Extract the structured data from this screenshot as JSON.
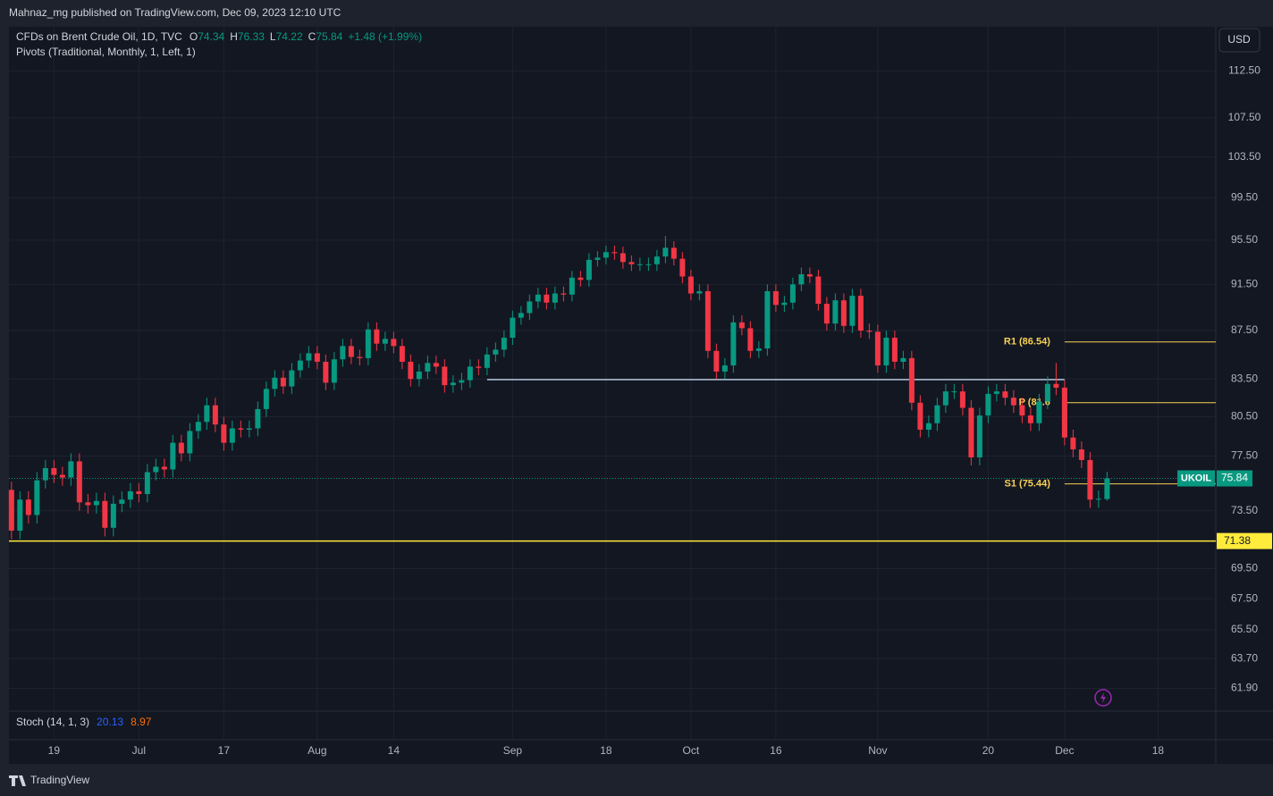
{
  "header": {
    "publisher": "Mahnaz_mg published on TradingView.com, Dec 09, 2023 12:10 UTC"
  },
  "footer": {
    "brand": "TradingView"
  },
  "chart_data": {
    "type": "candlestick",
    "title": "CFDs on Brent Crude Oil, 1D, TVC",
    "subtitle": "Pivots (Traditional, Monthly, 1, Left, 1)",
    "ohlc_labels": [
      "O",
      "H",
      "L",
      "C"
    ],
    "change": "+1.48 (+1.99%)",
    "currency": "USD",
    "log_scale": true,
    "grid": true,
    "up_color": "#089981",
    "down_color": "#f23645",
    "xlim": [
      -0.3,
      141.8
    ],
    "xticks": [
      {
        "value": 5,
        "label": "19"
      },
      {
        "value": 15,
        "label": "Jul"
      },
      {
        "value": 25,
        "label": "17"
      },
      {
        "value": 36,
        "label": "Aug"
      },
      {
        "value": 45,
        "label": "14"
      },
      {
        "value": 59,
        "label": "Sep"
      },
      {
        "value": 70,
        "label": "18"
      },
      {
        "value": 80,
        "label": "Oct"
      },
      {
        "value": 90,
        "label": "16"
      },
      {
        "value": 102,
        "label": "Nov"
      },
      {
        "value": 115,
        "label": "20"
      },
      {
        "value": 124,
        "label": "Dec"
      },
      {
        "value": 135,
        "label": "18"
      }
    ],
    "ylim": [
      60.6,
      117.4
    ],
    "yticks": [
      {
        "value": 112.5,
        "label": "112.50"
      },
      {
        "value": 107.5,
        "label": "107.50"
      },
      {
        "value": 103.5,
        "label": "103.50"
      },
      {
        "value": 99.5,
        "label": "99.50"
      },
      {
        "value": 95.5,
        "label": "95.50"
      },
      {
        "value": 91.5,
        "label": "91.50"
      },
      {
        "value": 87.5,
        "label": "87.50"
      },
      {
        "value": 83.5,
        "label": "83.50"
      },
      {
        "value": 80.5,
        "label": "80.50"
      },
      {
        "value": 77.5,
        "label": "77.50"
      },
      {
        "value": 73.5,
        "label": "73.50"
      },
      {
        "value": 69.5,
        "label": "69.50"
      },
      {
        "value": 67.5,
        "label": "67.50"
      },
      {
        "value": 65.5,
        "label": "65.50"
      },
      {
        "value": 63.7,
        "label": "63.70"
      },
      {
        "value": 61.9,
        "label": "61.90"
      }
    ],
    "series": [
      {
        "name": "UKOIL",
        "open": [
          75.0,
          72.1,
          74.3,
          73.2,
          75.7,
          76.6,
          76.1,
          75.9,
          77.1,
          74.1,
          73.9,
          74.2,
          72.3,
          74.0,
          74.3,
          74.9,
          74.7,
          76.3,
          76.7,
          76.5,
          78.5,
          77.7,
          79.4,
          80.1,
          81.4,
          79.9,
          78.5,
          79.6,
          79.5,
          79.6,
          81.1,
          82.7,
          83.6,
          82.9,
          84.2,
          85.0,
          85.6,
          84.9,
          83.2,
          85.1,
          86.2,
          85.3,
          85.2,
          87.6,
          86.4,
          86.8,
          86.2,
          84.9,
          83.5,
          84.1,
          84.8,
          84.5,
          83.0,
          83.2,
          83.4,
          84.5,
          84.4,
          85.5,
          85.9,
          86.9,
          88.6,
          89.0,
          90.0,
          90.6,
          89.9,
          90.7,
          90.6,
          92.1,
          91.9,
          93.7,
          93.9,
          94.4,
          94.3,
          93.5,
          93.3,
          93.3,
          93.3,
          94.0,
          94.8,
          93.8,
          92.2,
          90.7,
          90.9,
          85.8,
          84.1,
          84.6,
          88.2,
          87.7,
          85.8,
          86.0,
          90.9,
          89.7,
          89.9,
          91.5,
          92.4,
          92.2,
          89.8,
          88.1,
          90.1,
          87.9,
          90.5,
          87.5,
          87.4,
          84.6,
          86.9,
          84.9,
          85.2,
          81.6,
          79.5,
          80.0,
          81.4,
          82.5,
          82.5,
          81.2,
          77.4,
          80.6,
          82.3,
          82.5,
          82.0,
          81.4,
          80.6,
          80.0,
          81.7,
          83.1,
          82.8,
          78.9,
          78.0,
          77.2,
          74.3,
          74.34
        ],
        "high": [
          75.6,
          74.9,
          74.9,
          76.3,
          77.2,
          77.2,
          76.7,
          77.7,
          77.7,
          74.7,
          74.8,
          74.8,
          74.6,
          74.9,
          75.5,
          75.5,
          76.9,
          77.3,
          77.3,
          79.1,
          79.1,
          80.0,
          80.7,
          82.0,
          82.0,
          80.5,
          80.2,
          80.2,
          80.2,
          81.7,
          83.3,
          84.2,
          84.2,
          84.8,
          85.6,
          86.2,
          86.2,
          85.5,
          85.7,
          86.8,
          86.8,
          85.9,
          88.2,
          88.2,
          87.4,
          87.4,
          86.8,
          85.5,
          84.7,
          85.4,
          85.4,
          85.1,
          83.8,
          84.0,
          85.1,
          85.1,
          86.1,
          86.5,
          87.5,
          89.2,
          89.6,
          90.6,
          91.2,
          91.2,
          91.3,
          91.3,
          92.7,
          92.7,
          94.3,
          94.5,
          95.0,
          95.0,
          94.9,
          94.1,
          93.9,
          93.9,
          94.6,
          95.9,
          95.4,
          94.4,
          92.8,
          91.5,
          91.5,
          86.4,
          85.2,
          88.8,
          88.8,
          88.3,
          86.6,
          91.5,
          91.5,
          90.5,
          92.1,
          93.0,
          93.0,
          92.8,
          90.4,
          90.7,
          90.7,
          91.1,
          91.1,
          88.1,
          88.0,
          87.5,
          87.5,
          85.8,
          85.8,
          82.2,
          80.6,
          82.0,
          83.1,
          83.1,
          83.1,
          81.8,
          81.2,
          82.9,
          83.1,
          83.1,
          82.6,
          82.0,
          81.2,
          82.3,
          83.7,
          84.8,
          83.4,
          79.5,
          78.6,
          77.8,
          74.96,
          76.33
        ],
        "low": [
          71.5,
          71.5,
          72.6,
          72.6,
          75.1,
          75.5,
          75.3,
          75.3,
          73.5,
          73.3,
          73.3,
          71.7,
          71.7,
          73.4,
          73.7,
          74.1,
          74.1,
          75.7,
          75.9,
          75.9,
          77.1,
          77.1,
          78.8,
          79.5,
          79.3,
          77.9,
          77.9,
          78.9,
          78.9,
          79.0,
          80.5,
          82.1,
          82.3,
          82.3,
          83.6,
          84.4,
          84.3,
          82.6,
          82.6,
          84.5,
          84.7,
          84.6,
          84.6,
          85.8,
          85.8,
          85.6,
          84.3,
          82.9,
          82.9,
          83.5,
          83.9,
          82.4,
          82.4,
          82.6,
          82.8,
          83.8,
          83.8,
          84.9,
          85.3,
          86.3,
          88.0,
          88.4,
          89.4,
          89.3,
          89.3,
          90.0,
          90.0,
          91.3,
          91.3,
          93.1,
          93.3,
          93.7,
          92.9,
          92.7,
          92.7,
          92.7,
          92.7,
          93.4,
          93.2,
          91.6,
          90.1,
          90.1,
          85.2,
          83.5,
          83.5,
          84.0,
          87.1,
          85.2,
          85.2,
          85.4,
          89.1,
          89.1,
          89.3,
          90.9,
          91.6,
          89.2,
          87.5,
          87.5,
          87.3,
          87.3,
          86.9,
          86.8,
          84.0,
          84.0,
          84.3,
          84.3,
          81.0,
          78.9,
          78.9,
          79.4,
          80.8,
          81.9,
          80.6,
          76.8,
          76.8,
          80.0,
          81.7,
          81.4,
          80.8,
          80.0,
          79.4,
          79.4,
          81.1,
          82.2,
          78.3,
          77.4,
          76.6,
          73.7,
          73.7,
          74.22
        ],
        "close": [
          72.1,
          74.3,
          73.2,
          75.7,
          76.6,
          76.1,
          75.9,
          77.1,
          74.1,
          73.9,
          74.2,
          72.3,
          74.0,
          74.3,
          74.9,
          74.7,
          76.3,
          76.7,
          76.5,
          78.5,
          77.7,
          79.4,
          80.1,
          81.4,
          79.9,
          78.5,
          79.6,
          79.5,
          79.6,
          81.1,
          82.7,
          83.6,
          82.9,
          84.2,
          85.0,
          85.6,
          84.9,
          83.2,
          85.1,
          86.2,
          85.3,
          85.2,
          87.6,
          86.4,
          86.8,
          86.2,
          84.9,
          83.5,
          84.1,
          84.8,
          84.5,
          83.0,
          83.2,
          83.4,
          84.5,
          84.4,
          85.5,
          85.9,
          86.9,
          88.6,
          89.0,
          90.0,
          90.6,
          89.9,
          90.7,
          90.6,
          92.1,
          91.9,
          93.7,
          93.9,
          94.4,
          94.3,
          93.5,
          93.3,
          93.3,
          93.3,
          94.0,
          94.8,
          93.8,
          92.2,
          90.7,
          90.9,
          85.8,
          84.1,
          84.6,
          88.2,
          87.7,
          85.8,
          86.0,
          90.9,
          89.7,
          89.9,
          91.5,
          92.4,
          92.2,
          89.8,
          88.1,
          90.1,
          87.9,
          90.5,
          87.5,
          87.4,
          84.6,
          86.9,
          84.9,
          85.2,
          81.6,
          79.5,
          80.0,
          81.4,
          82.5,
          82.5,
          81.2,
          77.4,
          80.6,
          82.3,
          82.5,
          82.0,
          81.4,
          80.6,
          80.0,
          81.7,
          83.1,
          82.8,
          78.9,
          78.0,
          77.2,
          74.3,
          74.36,
          75.84
        ]
      }
    ],
    "horizontal_lines": [
      {
        "value": 83.45,
        "x": [
          56,
          124
        ],
        "color": "#b2c7d9"
      },
      {
        "value": 71.38,
        "color": "#ffeb3b"
      }
    ],
    "pivot_color": "#f7d154",
    "pivots": [
      {
        "name": "R1 (86.54)",
        "value": 86.54
      },
      {
        "name": "P (81.6",
        "value": 81.6
      },
      {
        "name": "S1 (75.44)",
        "value": 75.44
      }
    ],
    "indicator": {
      "name": "Stoch (14, 1, 3)",
      "values": [
        20.13,
        8.97
      ],
      "colors": [
        "#2962ff",
        "#ff6d00"
      ]
    }
  }
}
